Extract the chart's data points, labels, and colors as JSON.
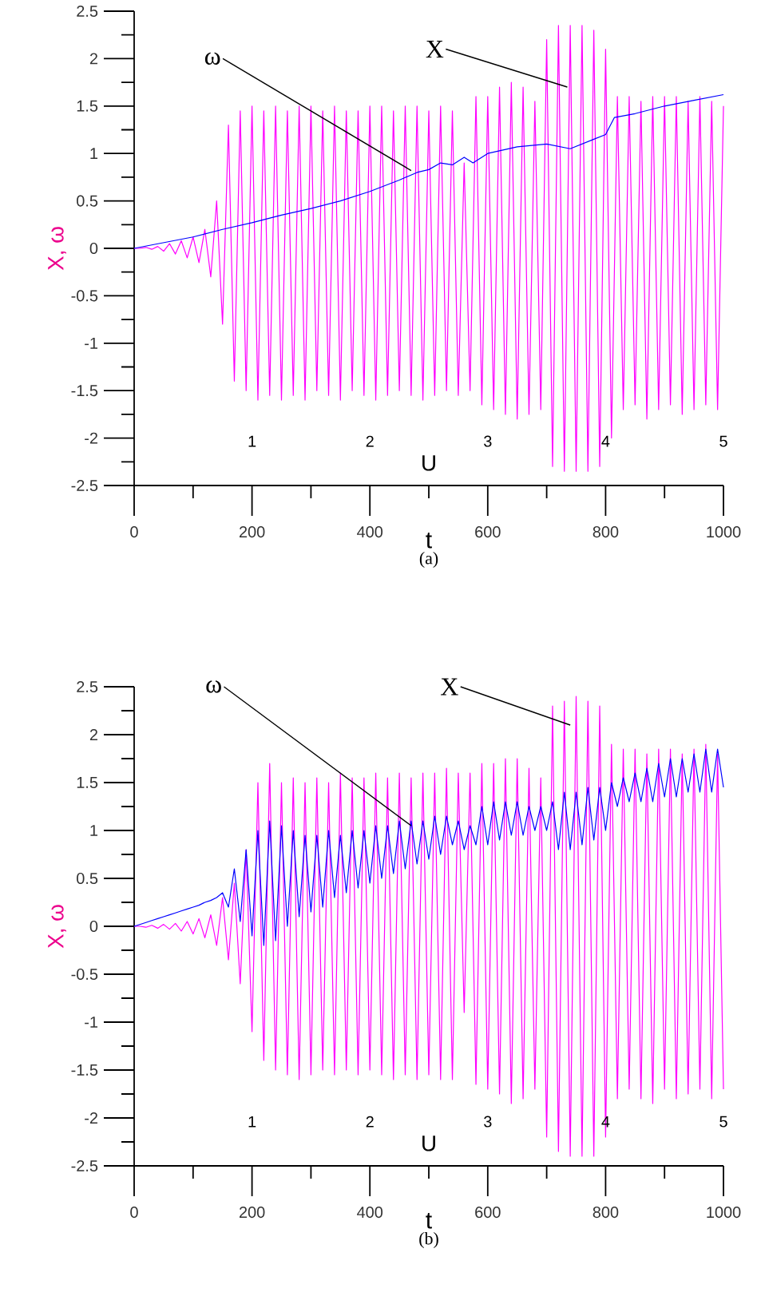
{
  "chart_data": [
    {
      "type": "line",
      "title": "(a)",
      "xlabel": "t",
      "ylabel": "X, ω",
      "x2label": "U",
      "xlim": [
        0,
        1000
      ],
      "xticks": [
        0,
        200,
        400,
        600,
        800,
        1000
      ],
      "ylim": [
        -2.5,
        2.5
      ],
      "yticks": [
        -2.5,
        -2,
        -1.5,
        -1,
        -0.5,
        0,
        0.5,
        1,
        1.5,
        2,
        2.5
      ],
      "x2lim": [
        0,
        5
      ],
      "x2ticks": [
        1,
        2,
        3,
        4,
        5
      ],
      "grid": false,
      "legend": false,
      "x": [
        0,
        10,
        20,
        30,
        40,
        50,
        60,
        70,
        80,
        90,
        100,
        110,
        120,
        130,
        140,
        150,
        160,
        170,
        180,
        190,
        200,
        210,
        220,
        230,
        240,
        250,
        260,
        270,
        280,
        290,
        300,
        310,
        320,
        330,
        340,
        350,
        360,
        370,
        380,
        390,
        400,
        410,
        420,
        430,
        440,
        450,
        460,
        470,
        480,
        490,
        500,
        510,
        520,
        530,
        540,
        550,
        560,
        570,
        580,
        590,
        600,
        610,
        620,
        630,
        640,
        650,
        660,
        670,
        680,
        690,
        700,
        710,
        720,
        730,
        740,
        750,
        760,
        770,
        780,
        790,
        800,
        810,
        820,
        830,
        840,
        850,
        860,
        870,
        880,
        890,
        900,
        910,
        920,
        930,
        940,
        950,
        960,
        970,
        980,
        990,
        1000
      ],
      "series": [
        {
          "name": "X",
          "color": "#ff00ff",
          "values": [
            0,
            0,
            0.01,
            -0.01,
            0.02,
            -0.03,
            0.05,
            -0.06,
            0.08,
            -0.1,
            0.12,
            -0.15,
            0.2,
            -0.3,
            0.5,
            -0.8,
            1.3,
            -1.4,
            1.45,
            -1.5,
            1.5,
            -1.6,
            1.45,
            -1.55,
            1.5,
            -1.6,
            1.45,
            -1.55,
            1.5,
            -1.6,
            1.5,
            -1.5,
            1.45,
            -1.55,
            1.5,
            -1.6,
            1.45,
            -1.5,
            1.45,
            -1.55,
            1.5,
            -1.6,
            1.5,
            -1.55,
            1.45,
            -1.5,
            1.5,
            -1.55,
            1.5,
            -1.6,
            1.45,
            -1.55,
            1.5,
            -1.5,
            1.45,
            -1.55,
            0.9,
            -1.5,
            1.6,
            -1.65,
            1.6,
            -1.7,
            1.7,
            -1.75,
            1.75,
            -1.8,
            1.7,
            -1.75,
            1.55,
            -1.7,
            2.2,
            -2.3,
            2.35,
            -2.35,
            2.35,
            -2.35,
            2.35,
            -2.35,
            2.3,
            -2.3,
            2.1,
            -2.0,
            1.6,
            -1.7,
            1.6,
            -1.65,
            1.55,
            -1.8,
            1.6,
            -1.7,
            1.6,
            -1.65,
            1.6,
            -1.75,
            1.55,
            -1.7,
            1.6,
            -1.65,
            1.55,
            -1.7,
            1.5
          ]
        },
        {
          "name": "ω",
          "color": "#0000ff",
          "x": [
            0,
            100,
            150,
            200,
            250,
            300,
            350,
            400,
            450,
            480,
            500,
            520,
            540,
            560,
            575,
            600,
            650,
            700,
            740,
            780,
            800,
            815,
            850,
            900,
            950,
            1000
          ],
          "values": [
            0,
            0.12,
            0.2,
            0.27,
            0.35,
            0.42,
            0.5,
            0.6,
            0.72,
            0.8,
            0.83,
            0.9,
            0.88,
            0.96,
            0.9,
            1.0,
            1.07,
            1.1,
            1.05,
            1.15,
            1.2,
            1.38,
            1.42,
            1.5,
            1.56,
            1.62
          ]
        }
      ]
    },
    {
      "type": "line",
      "title": "(b)",
      "xlabel": "t",
      "ylabel": "X, ω",
      "x2label": "U",
      "xlim": [
        0,
        1000
      ],
      "xticks": [
        0,
        200,
        400,
        600,
        800,
        1000
      ],
      "ylim": [
        -2.5,
        2.5
      ],
      "yticks": [
        -2.5,
        -2,
        -1.5,
        -1,
        -0.5,
        0,
        0.5,
        1,
        1.5,
        2,
        2.5
      ],
      "x2lim": [
        0,
        5
      ],
      "x2ticks": [
        1,
        2,
        3,
        4,
        5
      ],
      "grid": false,
      "legend": false,
      "x": [
        0,
        10,
        20,
        30,
        40,
        50,
        60,
        70,
        80,
        90,
        100,
        110,
        120,
        130,
        140,
        150,
        160,
        170,
        180,
        190,
        200,
        210,
        220,
        230,
        240,
        250,
        260,
        270,
        280,
        290,
        300,
        310,
        320,
        330,
        340,
        350,
        360,
        370,
        380,
        390,
        400,
        410,
        420,
        430,
        440,
        450,
        460,
        470,
        480,
        490,
        500,
        510,
        520,
        530,
        540,
        550,
        560,
        570,
        580,
        590,
        600,
        610,
        620,
        630,
        640,
        650,
        660,
        670,
        680,
        690,
        700,
        710,
        720,
        730,
        740,
        750,
        760,
        770,
        780,
        790,
        800,
        810,
        820,
        830,
        840,
        850,
        860,
        870,
        880,
        890,
        900,
        910,
        920,
        930,
        940,
        950,
        960,
        970,
        980,
        990,
        1000
      ],
      "series": [
        {
          "name": "X",
          "color": "#ff00ff",
          "values": [
            0,
            0,
            -0.01,
            0.01,
            -0.02,
            0.02,
            -0.03,
            0.03,
            -0.05,
            0.05,
            -0.08,
            0.08,
            -0.12,
            0.12,
            -0.2,
            0.3,
            -0.35,
            0.45,
            -0.6,
            0.8,
            -1.1,
            1.5,
            -1.4,
            1.7,
            -1.5,
            1.5,
            -1.55,
            1.55,
            -1.6,
            1.5,
            -1.55,
            1.55,
            -1.5,
            1.5,
            -1.55,
            1.6,
            -1.5,
            1.55,
            -1.55,
            1.55,
            -1.5,
            1.6,
            -1.55,
            1.55,
            -1.6,
            1.6,
            -1.55,
            1.55,
            -1.6,
            1.6,
            -1.55,
            1.6,
            -1.6,
            1.65,
            -1.6,
            1.6,
            -0.9,
            1.6,
            -1.65,
            1.7,
            -1.7,
            1.7,
            -1.75,
            1.75,
            -1.85,
            1.75,
            -1.8,
            1.65,
            -1.7,
            1.55,
            -2.2,
            2.3,
            -2.35,
            2.35,
            -2.4,
            2.4,
            -2.4,
            2.35,
            -2.4,
            2.3,
            -2.2,
            1.9,
            -1.8,
            1.85,
            -1.7,
            1.85,
            -1.8,
            1.8,
            -1.85,
            1.85,
            -1.7,
            1.85,
            -1.8,
            1.8,
            -1.75,
            1.85,
            -1.7,
            1.9,
            -1.8,
            1.8,
            -1.7
          ]
        },
        {
          "name": "ω",
          "color": "#0000ff",
          "values": [
            0,
            0.02,
            0.04,
            0.06,
            0.08,
            0.1,
            0.12,
            0.14,
            0.16,
            0.18,
            0.2,
            0.22,
            0.25,
            0.27,
            0.3,
            0.35,
            0.2,
            0.6,
            0.05,
            0.8,
            -0.1,
            1.0,
            -0.2,
            1.1,
            -0.15,
            1.05,
            0.0,
            1.0,
            0.1,
            0.95,
            0.15,
            0.95,
            0.2,
            1.0,
            0.3,
            0.95,
            0.35,
            1.0,
            0.4,
            1.0,
            0.45,
            1.05,
            0.5,
            1.05,
            0.55,
            1.1,
            0.6,
            1.1,
            0.65,
            1.1,
            0.7,
            1.15,
            0.75,
            1.15,
            0.85,
            1.1,
            0.8,
            1.05,
            0.85,
            1.25,
            0.85,
            1.3,
            0.9,
            1.3,
            0.95,
            1.3,
            0.95,
            1.25,
            1.0,
            1.25,
            1.0,
            1.3,
            0.8,
            1.4,
            0.8,
            1.4,
            0.85,
            1.45,
            0.9,
            1.45,
            1.0,
            1.5,
            1.25,
            1.55,
            1.3,
            1.6,
            1.3,
            1.65,
            1.3,
            1.7,
            1.35,
            1.75,
            1.35,
            1.75,
            1.4,
            1.8,
            1.4,
            1.85,
            1.4,
            1.85,
            1.45
          ]
        }
      ]
    }
  ]
}
